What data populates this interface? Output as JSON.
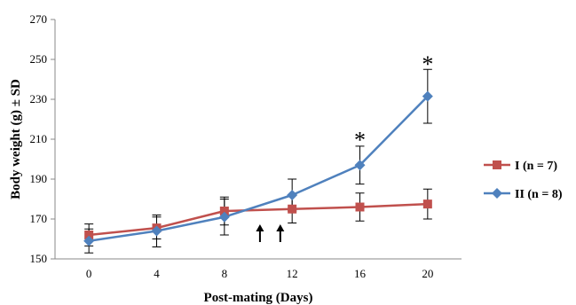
{
  "chart_data": {
    "type": "line",
    "xlabel": "Post-mating (Days)",
    "ylabel": "Body weight (g) ± SD",
    "x": [
      0,
      4,
      8,
      12,
      16,
      20
    ],
    "xlim": [
      -2,
      22
    ],
    "ylim": [
      150,
      270
    ],
    "yticks": [
      150,
      170,
      190,
      210,
      230,
      250,
      270
    ],
    "grid": false,
    "legend_position": "right",
    "series": [
      {
        "name": "I (n = 7)",
        "color": "#c0504d",
        "marker": "square",
        "values": [
          162,
          165.5,
          174,
          175,
          176,
          177.5
        ],
        "sd": [
          5.5,
          5.5,
          7,
          7,
          7,
          7.5
        ]
      },
      {
        "name": "II (n = 8)",
        "color": "#4f81bd",
        "marker": "diamond",
        "values": [
          159,
          164,
          171,
          182,
          197,
          231.5
        ],
        "sd": [
          6,
          8,
          9,
          8,
          9.5,
          13.5
        ]
      }
    ],
    "annotations": [
      {
        "type": "significance",
        "text": "*",
        "x": 16,
        "y": 212
      },
      {
        "type": "significance",
        "text": "*",
        "x": 20,
        "y": 250
      },
      {
        "type": "arrow",
        "text": "↑",
        "x": 10.1,
        "y": 162
      },
      {
        "type": "arrow",
        "text": "↑",
        "x": 11.3,
        "y": 162
      }
    ]
  }
}
